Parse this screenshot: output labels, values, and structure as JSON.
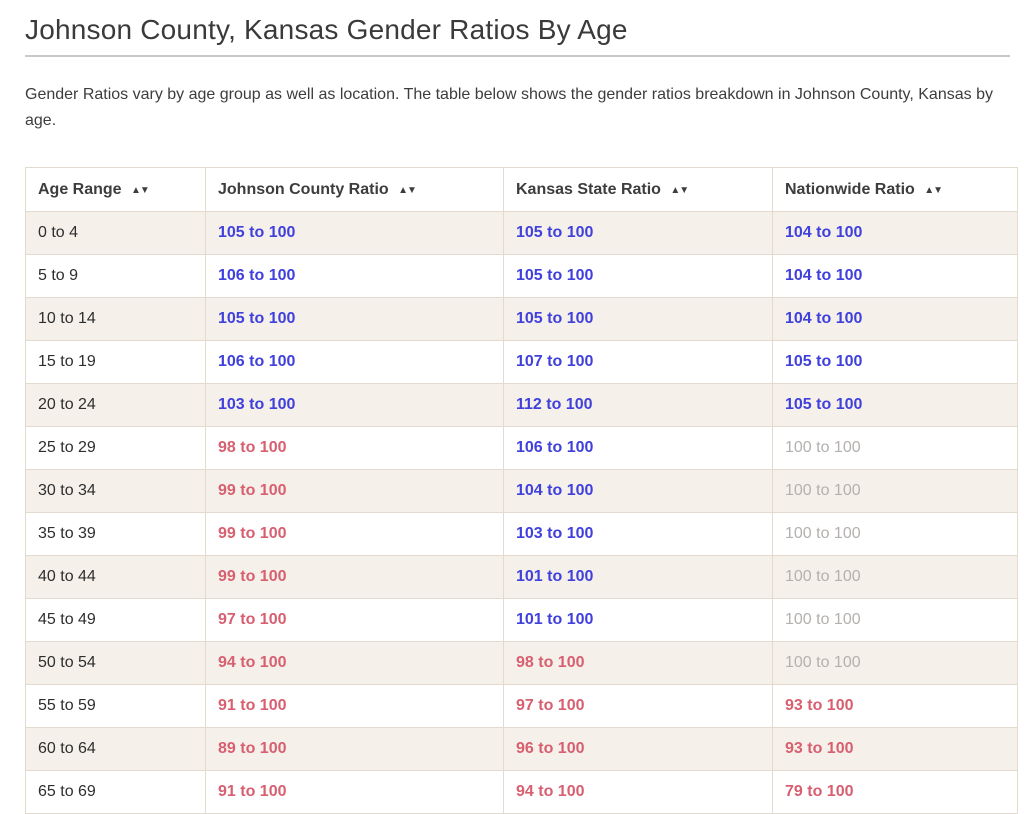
{
  "page": {
    "title": "Johnson County, Kansas Gender Ratios By Age",
    "description": "Gender Ratios vary by age group as well as location. The table below shows the gender ratios breakdown in Johnson County, Kansas by age."
  },
  "colors": {
    "positive_ratio": "#4040dc",
    "negative_ratio": "#d75f70",
    "neutral_ratio": "#b3b0ad",
    "row_stripe": "#f5f1ea",
    "table_border": "#e3dbcf"
  },
  "table": {
    "sort_icon": "▲▼",
    "columns": [
      {
        "label": "Age Range"
      },
      {
        "label": "Johnson County Ratio"
      },
      {
        "label": "Kansas State Ratio"
      },
      {
        "label": "Nationwide Ratio"
      }
    ],
    "rows": [
      {
        "age": "0 to 4",
        "values": [
          {
            "text": "105 to 100",
            "color": "blue"
          },
          {
            "text": "105 to 100",
            "color": "blue"
          },
          {
            "text": "104 to 100",
            "color": "blue"
          }
        ]
      },
      {
        "age": "5 to 9",
        "values": [
          {
            "text": "106 to 100",
            "color": "blue"
          },
          {
            "text": "105 to 100",
            "color": "blue"
          },
          {
            "text": "104 to 100",
            "color": "blue"
          }
        ]
      },
      {
        "age": "10 to 14",
        "values": [
          {
            "text": "105 to 100",
            "color": "blue"
          },
          {
            "text": "105 to 100",
            "color": "blue"
          },
          {
            "text": "104 to 100",
            "color": "blue"
          }
        ]
      },
      {
        "age": "15 to 19",
        "values": [
          {
            "text": "106 to 100",
            "color": "blue"
          },
          {
            "text": "107 to 100",
            "color": "blue"
          },
          {
            "text": "105 to 100",
            "color": "blue"
          }
        ]
      },
      {
        "age": "20 to 24",
        "values": [
          {
            "text": "103 to 100",
            "color": "blue"
          },
          {
            "text": "112 to 100",
            "color": "blue"
          },
          {
            "text": "105 to 100",
            "color": "blue"
          }
        ]
      },
      {
        "age": "25 to 29",
        "values": [
          {
            "text": "98 to 100",
            "color": "red"
          },
          {
            "text": "106 to 100",
            "color": "blue"
          },
          {
            "text": "100 to 100",
            "color": "gray"
          }
        ]
      },
      {
        "age": "30 to 34",
        "values": [
          {
            "text": "99 to 100",
            "color": "red"
          },
          {
            "text": "104 to 100",
            "color": "blue"
          },
          {
            "text": "100 to 100",
            "color": "gray"
          }
        ]
      },
      {
        "age": "35 to 39",
        "values": [
          {
            "text": "99 to 100",
            "color": "red"
          },
          {
            "text": "103 to 100",
            "color": "blue"
          },
          {
            "text": "100 to 100",
            "color": "gray"
          }
        ]
      },
      {
        "age": "40 to 44",
        "values": [
          {
            "text": "99 to 100",
            "color": "red"
          },
          {
            "text": "101 to 100",
            "color": "blue"
          },
          {
            "text": "100 to 100",
            "color": "gray"
          }
        ]
      },
      {
        "age": "45 to 49",
        "values": [
          {
            "text": "97 to 100",
            "color": "red"
          },
          {
            "text": "101 to 100",
            "color": "blue"
          },
          {
            "text": "100 to 100",
            "color": "gray"
          }
        ]
      },
      {
        "age": "50 to 54",
        "values": [
          {
            "text": "94 to 100",
            "color": "red"
          },
          {
            "text": "98 to 100",
            "color": "red"
          },
          {
            "text": "100 to 100",
            "color": "gray"
          }
        ]
      },
      {
        "age": "55 to 59",
        "values": [
          {
            "text": "91 to 100",
            "color": "red"
          },
          {
            "text": "97 to 100",
            "color": "red"
          },
          {
            "text": "93 to 100",
            "color": "red"
          }
        ]
      },
      {
        "age": "60 to 64",
        "values": [
          {
            "text": "89 to 100",
            "color": "red"
          },
          {
            "text": "96 to 100",
            "color": "red"
          },
          {
            "text": "93 to 100",
            "color": "red"
          }
        ]
      },
      {
        "age": "65 to 69",
        "values": [
          {
            "text": "91 to 100",
            "color": "red"
          },
          {
            "text": "94 to 100",
            "color": "red"
          },
          {
            "text": "79 to 100",
            "color": "red"
          }
        ]
      }
    ]
  }
}
